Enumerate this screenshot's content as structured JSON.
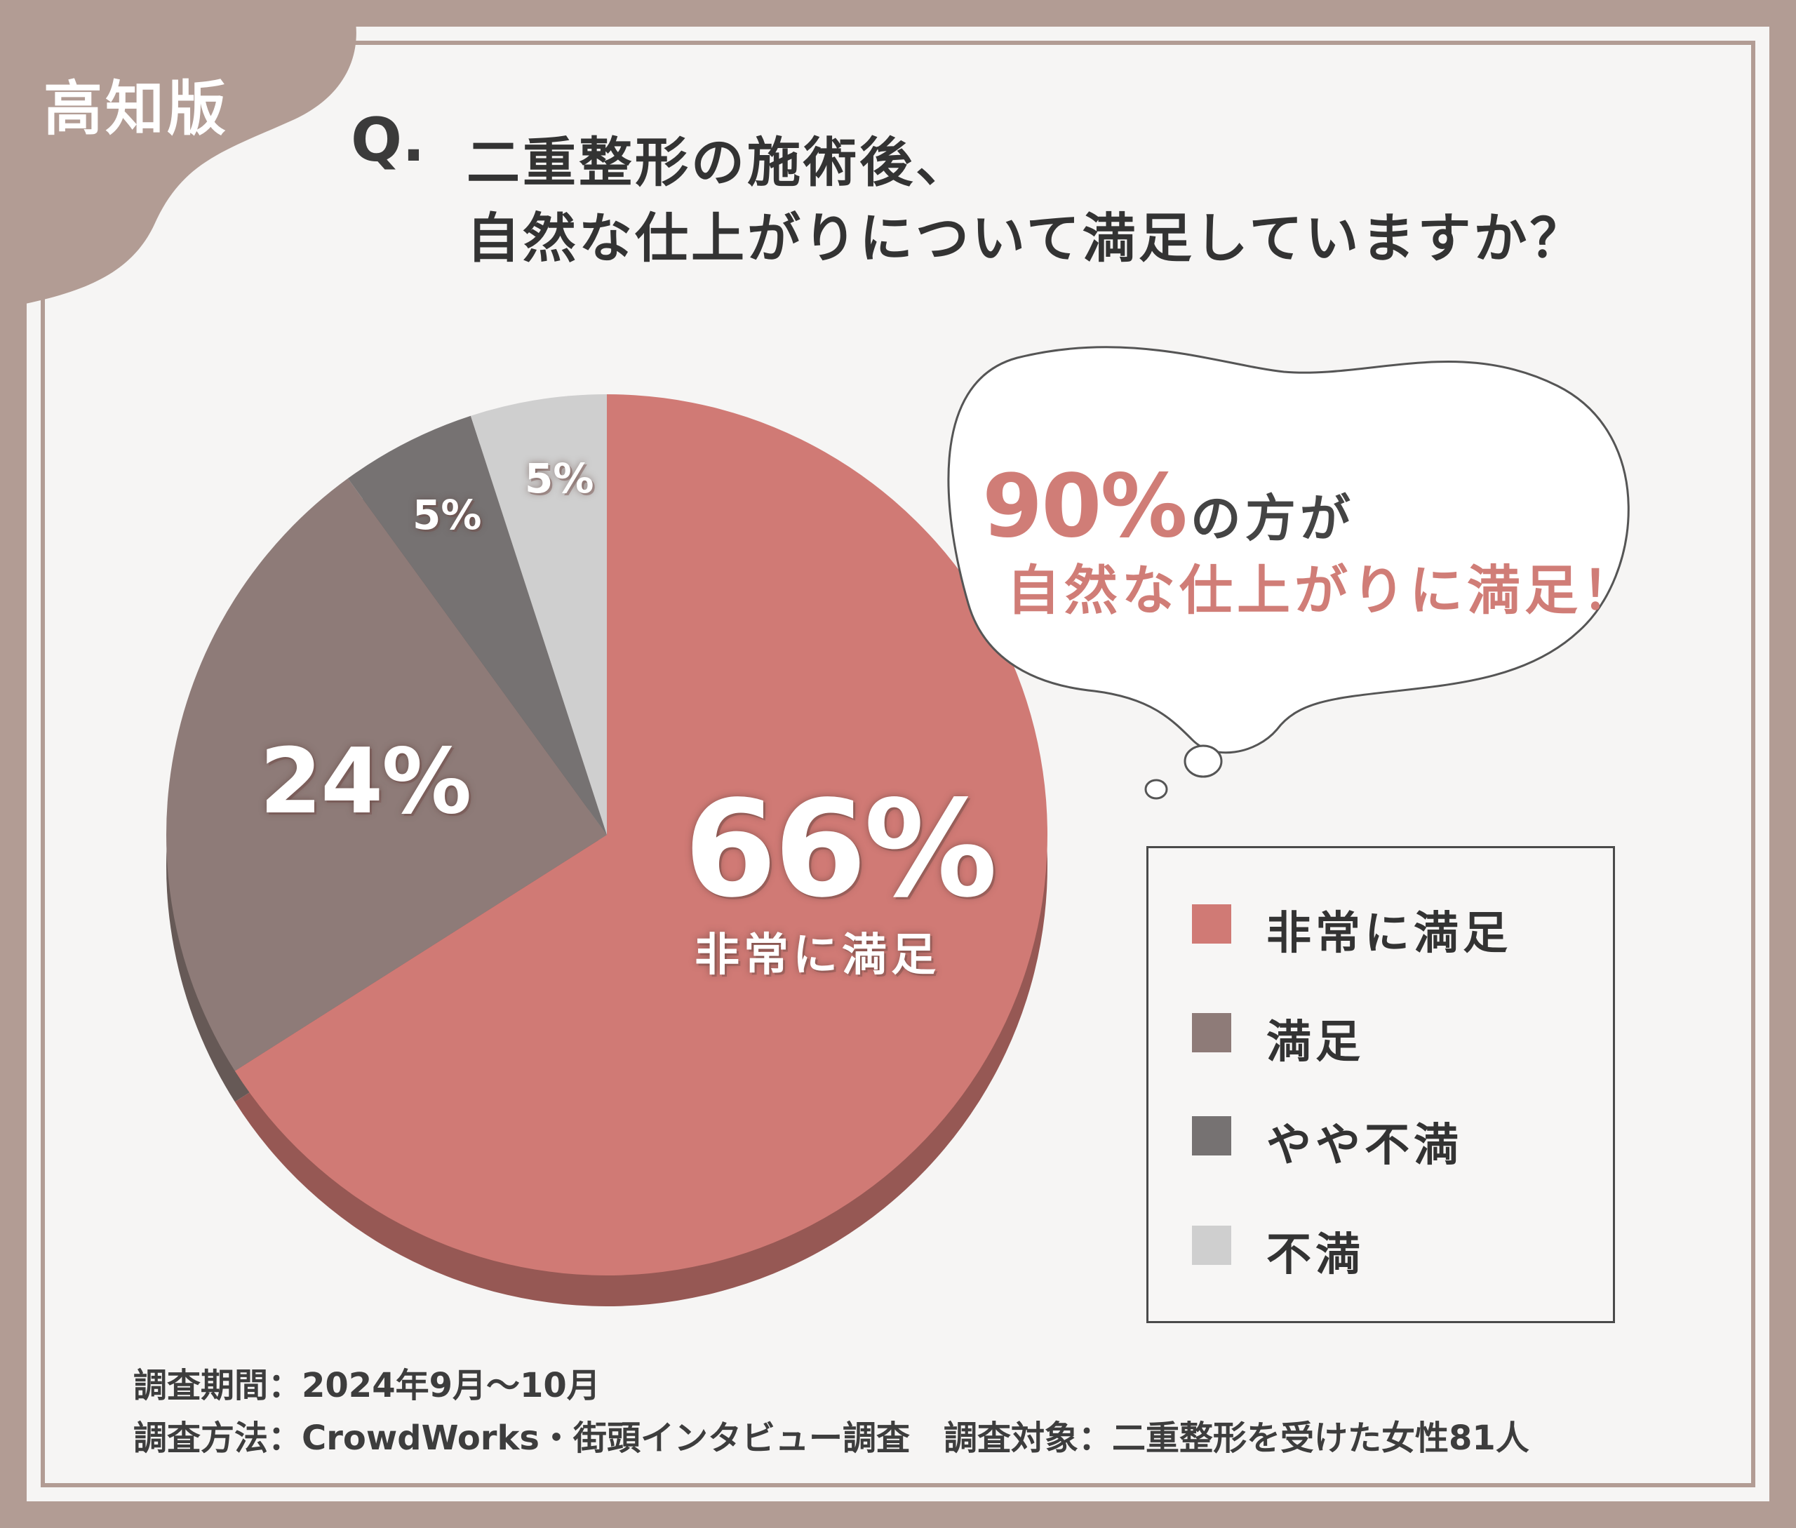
{
  "region_tag": "高知版",
  "question": {
    "prefix": "Q.",
    "line1": "二重整形の施術後、",
    "line2": "自然な仕上がりについて満足していますか？"
  },
  "callout": {
    "highlight": "90%",
    "suffix": "の方が",
    "line2": "自然な仕上がりに満足！"
  },
  "chart_data": {
    "type": "pie",
    "categories": [
      "非常に満足",
      "満足",
      "やや不満",
      "不満"
    ],
    "values": [
      66,
      24,
      5,
      5
    ],
    "labels": [
      "66%",
      "24%",
      "5%",
      "5%"
    ],
    "colors": [
      "#d07a75",
      "#8e7b78",
      "#767272",
      "#cfcfcf"
    ],
    "legend": "right",
    "title": ""
  },
  "featured_label_category": "非常に満足",
  "legend_items": [
    {
      "label": "非常に満足",
      "color": "#d07a75"
    },
    {
      "label": "満足",
      "color": "#8e7b78"
    },
    {
      "label": "やや不満",
      "color": "#767272"
    },
    {
      "label": "不満",
      "color": "#cfcfcf"
    }
  ],
  "notes": {
    "period": "調査期間：2024年9月～10月",
    "method": "調査方法：CrowdWorks・街頭インタビュー調査　調査対象：二重整形を受けた女性81人"
  }
}
